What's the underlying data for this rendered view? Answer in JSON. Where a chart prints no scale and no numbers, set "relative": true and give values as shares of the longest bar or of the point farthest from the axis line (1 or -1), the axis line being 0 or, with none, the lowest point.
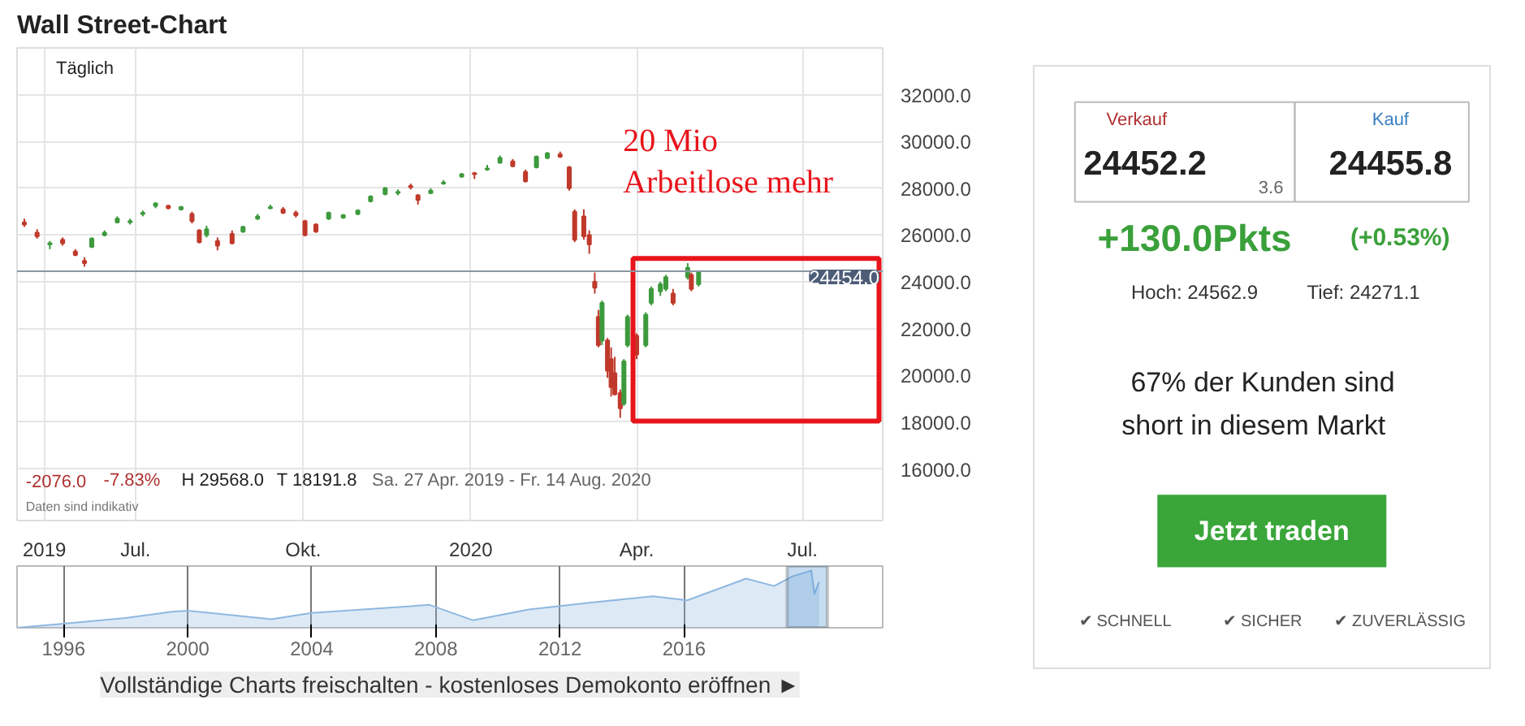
{
  "chart_data": [
    {
      "type": "candlestick",
      "title": "Wall Street-Chart",
      "x": [
        "2019-05-01",
        "2019-05-08",
        "2019-05-15",
        "2019-05-22",
        "2019-05-29",
        "2019-06-03",
        "2019-06-07",
        "2019-06-14",
        "2019-06-21",
        "2019-06-28",
        "2019-07-05",
        "2019-07-12",
        "2019-07-19",
        "2019-07-26",
        "2019-08-01",
        "2019-08-05",
        "2019-08-09",
        "2019-08-15",
        "2019-08-23",
        "2019-08-29",
        "2019-09-06",
        "2019-09-13",
        "2019-09-20",
        "2019-09-27",
        "2019-10-02",
        "2019-10-08",
        "2019-10-15",
        "2019-10-23",
        "2019-10-31",
        "2019-11-07",
        "2019-11-15",
        "2019-11-22",
        "2019-11-29",
        "2019-12-03",
        "2019-12-10",
        "2019-12-17",
        "2019-12-27",
        "2020-01-03",
        "2020-01-10",
        "2020-01-17",
        "2020-01-24",
        "2020-01-31",
        "2020-02-06",
        "2020-02-12",
        "2020-02-19",
        "2020-02-24",
        "2020-02-27",
        "2020-03-03",
        "2020-03-06",
        "2020-03-09",
        "2020-03-11",
        "2020-03-13",
        "2020-03-16",
        "2020-03-18",
        "2020-03-20",
        "2020-03-23",
        "2020-03-25",
        "2020-03-27",
        "2020-04-01",
        "2020-04-06",
        "2020-04-09",
        "2020-04-14",
        "2020-04-17",
        "2020-04-21",
        "2020-04-29",
        "2020-05-01",
        "2020-05-05"
      ],
      "ohlc": [
        [
          26550,
          26700,
          26350,
          26450
        ],
        [
          26100,
          26250,
          25850,
          25950
        ],
        [
          25600,
          25750,
          25400,
          25650
        ],
        [
          25800,
          25900,
          25550,
          25650
        ],
        [
          25300,
          25400,
          25100,
          25150
        ],
        [
          24900,
          25050,
          24650,
          24800
        ],
        [
          25500,
          25900,
          25450,
          25850
        ],
        [
          26000,
          26200,
          25950,
          26100
        ],
        [
          26550,
          26800,
          26500,
          26700
        ],
        [
          26550,
          26700,
          26450,
          26600
        ],
        [
          26900,
          27050,
          26800,
          26950
        ],
        [
          27250,
          27400,
          27150,
          27350
        ],
        [
          27250,
          27300,
          27100,
          27150
        ],
        [
          27100,
          27250,
          27050,
          27200
        ],
        [
          26900,
          27000,
          26500,
          26600
        ],
        [
          26200,
          26250,
          25650,
          25700
        ],
        [
          26000,
          26400,
          25900,
          26250
        ],
        [
          25750,
          25900,
          25350,
          25550
        ],
        [
          26050,
          26200,
          25600,
          25650
        ],
        [
          26150,
          26400,
          26100,
          26350
        ],
        [
          26700,
          26900,
          26650,
          26800
        ],
        [
          27150,
          27300,
          27100,
          27200
        ],
        [
          27100,
          27200,
          26900,
          26950
        ],
        [
          26950,
          27050,
          26750,
          26850
        ],
        [
          26600,
          26650,
          25950,
          26000
        ],
        [
          26450,
          26500,
          26100,
          26150
        ],
        [
          26700,
          27000,
          26650,
          26950
        ],
        [
          26750,
          26900,
          26700,
          26850
        ],
        [
          26900,
          27100,
          26850,
          27050
        ],
        [
          27450,
          27700,
          27400,
          27650
        ],
        [
          27750,
          28050,
          27700,
          28000
        ],
        [
          27800,
          27950,
          27700,
          27850
        ],
        [
          28100,
          28200,
          27950,
          28050
        ],
        [
          27700,
          27750,
          27300,
          27500
        ],
        [
          27800,
          28000,
          27750,
          27900
        ],
        [
          28200,
          28350,
          28150,
          28250
        ],
        [
          28500,
          28650,
          28450,
          28600
        ],
        [
          28650,
          28700,
          28400,
          28600
        ],
        [
          28800,
          29000,
          28750,
          28850
        ],
        [
          29100,
          29400,
          29050,
          29300
        ],
        [
          29150,
          29250,
          28900,
          28950
        ],
        [
          28700,
          28800,
          28250,
          28300
        ],
        [
          28900,
          29400,
          28850,
          29350
        ],
        [
          29300,
          29550,
          29250,
          29500
        ],
        [
          29450,
          29568,
          29300,
          29350
        ],
        [
          28900,
          28950,
          27900,
          28000
        ],
        [
          27000,
          27100,
          25700,
          25800
        ],
        [
          26800,
          27100,
          25800,
          25950
        ],
        [
          26000,
          26200,
          25200,
          25600
        ],
        [
          24000,
          24400,
          23500,
          23750
        ],
        [
          22500,
          22800,
          21200,
          21300
        ],
        [
          21500,
          23200,
          21300,
          23100
        ],
        [
          21500,
          21600,
          19900,
          20200
        ],
        [
          20700,
          21200,
          19100,
          19500
        ],
        [
          20100,
          20800,
          19150,
          19200
        ],
        [
          19250,
          19400,
          18191.8,
          18600
        ],
        [
          18800,
          20700,
          18700,
          20600
        ],
        [
          21300,
          22600,
          21200,
          22500
        ],
        [
          21700,
          21800,
          20700,
          20900
        ],
        [
          21300,
          22700,
          21200,
          22600
        ],
        [
          23100,
          23800,
          23000,
          23700
        ],
        [
          23600,
          24000,
          23400,
          23900
        ],
        [
          23700,
          24300,
          23600,
          24200
        ],
        [
          23500,
          23700,
          23000,
          23100
        ],
        [
          24200,
          24800,
          24100,
          24600
        ],
        [
          24300,
          24400,
          23600,
          23700
        ],
        [
          23900,
          24500,
          23800,
          24454
        ]
      ],
      "colors": [
        "#c0392b",
        "#c0392b",
        "#3d9a3d",
        "#c0392b",
        "#c0392b",
        "#c0392b",
        "#3d9a3d",
        "#3d9a3d",
        "#3d9a3d",
        "#3d9a3d",
        "#3d9a3d",
        "#3d9a3d",
        "#c0392b",
        "#3d9a3d",
        "#c0392b",
        "#c0392b",
        "#3d9a3d",
        "#c0392b",
        "#c0392b",
        "#3d9a3d",
        "#3d9a3d",
        "#3d9a3d",
        "#c0392b",
        "#c0392b",
        "#c0392b",
        "#c0392b",
        "#3d9a3d",
        "#3d9a3d",
        "#3d9a3d",
        "#3d9a3d",
        "#3d9a3d",
        "#3d9a3d",
        "#c0392b",
        "#c0392b",
        "#3d9a3d",
        "#3d9a3d",
        "#3d9a3d",
        "#c0392b",
        "#3d9a3d",
        "#3d9a3d",
        "#c0392b",
        "#c0392b",
        "#3d9a3d",
        "#3d9a3d",
        "#c0392b",
        "#c0392b",
        "#c0392b",
        "#c0392b",
        "#c0392b",
        "#c0392b",
        "#c0392b",
        "#3d9a3d",
        "#c0392b",
        "#c0392b",
        "#c0392b",
        "#c0392b",
        "#3d9a3d",
        "#3d9a3d",
        "#c0392b",
        "#3d9a3d",
        "#3d9a3d",
        "#3d9a3d",
        "#3d9a3d",
        "#c0392b",
        "#3d9a3d",
        "#c0392b",
        "#3d9a3d"
      ],
      "xlim": [
        "2019-04-27",
        "2020-08-14"
      ],
      "xticks": [
        {
          "value": "2019-05-12",
          "label": "2019"
        },
        {
          "value": "2019-07-01",
          "label": "Jul."
        },
        {
          "value": "2019-10-01",
          "label": "Okt."
        },
        {
          "value": "2020-01-01",
          "label": "2020"
        },
        {
          "value": "2020-04-01",
          "label": "Apr."
        },
        {
          "value": "2020-07-01",
          "label": "Jul."
        }
      ],
      "ylim": [
        13800,
        34000
      ],
      "yticks": [
        {
          "value": 16000,
          "label": "16000.0"
        },
        {
          "value": 18000,
          "label": "18000.0"
        },
        {
          "value": 20000,
          "label": "20000.0"
        },
        {
          "value": 22000,
          "label": "22000.0"
        },
        {
          "value": 24000,
          "label": "24000.0"
        },
        {
          "value": 26000,
          "label": "26000.0"
        },
        {
          "value": 28000,
          "label": "28000.0"
        },
        {
          "value": 30000,
          "label": "30000.0"
        },
        {
          "value": 32000,
          "label": "32000.0"
        }
      ],
      "grid": true,
      "ref_lines": [
        {
          "axis": "y",
          "value": 24454,
          "label": "24454.0",
          "color": "#8a96a3"
        }
      ],
      "annotations": [
        "Täglich",
        "-2076.0",
        "-7.83%",
        "H 29568.0",
        "T 18191.8",
        "Sa. 27 Apr. 2019 - Fr. 14 Aug. 2020",
        "Daten sind indikativ",
        "20 Mio\nArbeitlose mehr"
      ]
    },
    {
      "type": "area",
      "relative": true,
      "color": "#8fb8e0",
      "x": [
        1994.5,
        1996,
        1998,
        1999.5,
        2000,
        2002.7,
        2004,
        2007.8,
        2009.2,
        2011,
        2013,
        2015,
        2016.1,
        2018,
        2018.9,
        2019.5,
        2020.1,
        2020.2,
        2020.35
      ],
      "values": [
        0,
        0.07,
        0.17,
        0.28,
        0.3,
        0.15,
        0.26,
        0.4,
        0.13,
        0.32,
        0.44,
        0.55,
        0.48,
        0.86,
        0.73,
        0.9,
        1,
        0.59,
        0.8
      ],
      "xlim": [
        1994.5,
        2022.4
      ],
      "xticks": [
        1996,
        2000,
        2004,
        2008,
        2012,
        2016
      ],
      "grid": "x",
      "bands": [
        {
          "axis": "x",
          "from": 2019.32,
          "to": 2020.62,
          "color": "#5b9bd5"
        }
      ],
      "annotations": [
        "Vollständige Charts freischalten - kostenloses Demokonto eröffnen ►"
      ]
    },
    {
      "type": "other",
      "annotations": [
        "Verkauf",
        "24452.2",
        "Kauf",
        "24455.8",
        "3.6",
        "+130.0Pkts",
        "(+0.53%)",
        "Hoch: 24562.9",
        "Tief: 24271.1",
        "67% der Kunden sind",
        "short in diesem Markt",
        "Jetzt traden",
        "✔ SCHNELL",
        "✔ SICHER",
        "✔ ZUVERLÄSSIG"
      ]
    }
  ]
}
